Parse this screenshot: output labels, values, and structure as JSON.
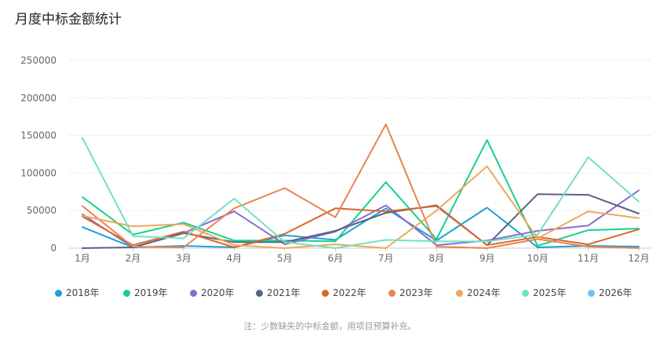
{
  "title": "月度中标金额统计",
  "note": "注：少数缺失的中标金额，用项目预算补充。",
  "chart_data": {
    "type": "line",
    "title": "月度中标金额统计",
    "categories": [
      "1月",
      "2月",
      "3月",
      "4月",
      "5月",
      "6月",
      "7月",
      "8月",
      "9月",
      "10月",
      "11月",
      "12月"
    ],
    "ylim": [
      0,
      250000
    ],
    "yticks": [
      0,
      50000,
      100000,
      150000,
      200000,
      250000
    ],
    "ytick_labels": [
      "0",
      "50000",
      "100000",
      "150000",
      "200000",
      "250000"
    ],
    "grid": true,
    "legend": "bottom",
    "series": [
      {
        "name": "2018年",
        "color": "#1ba3d9",
        "values": [
          28000,
          1000,
          3000,
          1000,
          17000,
          11000,
          53000,
          10000,
          54000,
          1000,
          3000,
          2000
        ]
      },
      {
        "name": "2019年",
        "color": "#19cf8f",
        "values": [
          68000,
          18000,
          34000,
          10000,
          10000,
          9000,
          88000,
          12000,
          144000,
          3000,
          24000,
          26000
        ]
      },
      {
        "name": "2020年",
        "color": "#8a6cd5",
        "values": [
          45000,
          1000,
          20000,
          49000,
          5000,
          22000,
          57000,
          4000,
          10000,
          23000,
          30000,
          77000
        ]
      },
      {
        "name": "2021年",
        "color": "#56647f",
        "values": [
          0,
          1000,
          20000,
          8000,
          8000,
          23000,
          47000,
          57000,
          4000,
          72000,
          71000,
          46000
        ]
      },
      {
        "name": "2022年",
        "color": "#d9682f",
        "values": [
          42000,
          4000,
          22000,
          1000,
          19000,
          53000,
          49000,
          56000,
          4000,
          15000,
          5000,
          25000
        ]
      },
      {
        "name": "2023年",
        "color": "#e9834f",
        "values": [
          56000,
          2000,
          1000,
          53000,
          80000,
          41000,
          165000,
          2000,
          0,
          12000,
          2000,
          0
        ]
      },
      {
        "name": "2024年",
        "color": "#f0a757",
        "values": [
          43000,
          29000,
          32000,
          4000,
          0,
          5000,
          0,
          50000,
          109000,
          13000,
          49000,
          40000
        ]
      },
      {
        "name": "2025年",
        "color": "#74e2bf",
        "values": [
          147000,
          16000,
          13000,
          66000,
          8000,
          0,
          11000,
          9000,
          9000,
          18000,
          121000,
          62000
        ]
      },
      {
        "name": "2026年",
        "color": "#6ac3f4",
        "values": [
          null,
          null,
          null,
          null,
          null,
          null,
          null,
          null,
          null,
          null,
          null,
          null
        ]
      }
    ]
  }
}
